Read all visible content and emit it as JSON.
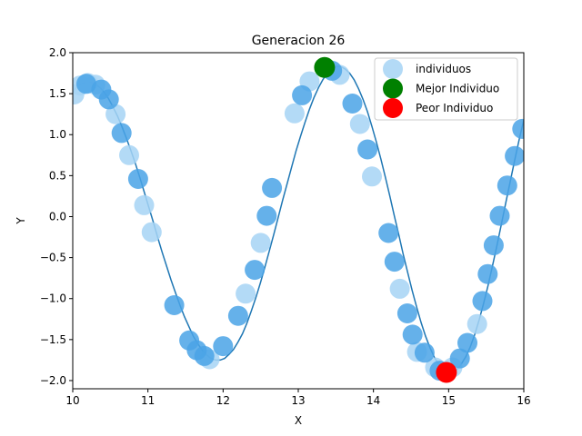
{
  "chart_data": {
    "type": "scatter",
    "title": "Generacion 26",
    "xlabel": "X",
    "ylabel": "Y",
    "xlim": [
      10,
      16
    ],
    "ylim": [
      -2.1,
      2.0
    ],
    "xticks": [
      "10",
      "11",
      "12",
      "13",
      "14",
      "15",
      "16"
    ],
    "yticks": [
      "2.0",
      "1.5",
      "1.0",
      "0.5",
      "0.0",
      "−0.5",
      "−1.0",
      "−1.5",
      "−2.0"
    ],
    "grid": false,
    "legend_position": "top-right",
    "curve": {
      "color": "#1f77b4",
      "x_start": 10,
      "x_end": 16,
      "y_values": [
        1.53,
        1.58,
        1.62,
        1.64,
        1.64,
        1.62,
        1.58,
        1.52,
        1.44,
        1.34,
        1.23,
        1.1,
        0.96,
        0.81,
        0.65,
        0.48,
        0.3,
        0.12,
        -0.06,
        -0.25,
        -0.43,
        -0.6,
        -0.77,
        -0.93,
        -1.08,
        -1.22,
        -1.34,
        -1.46,
        -1.55,
        -1.63,
        -1.69,
        -1.73,
        -1.75,
        -1.75,
        -1.73,
        -1.68,
        -1.62,
        -1.53,
        -1.43,
        -1.3,
        -1.15,
        -0.99,
        -0.81,
        -0.62,
        -0.42,
        -0.22,
        -0.01,
        0.2,
        0.4,
        0.6,
        0.8,
        0.98,
        1.15,
        1.31,
        1.45,
        1.57,
        1.67,
        1.75,
        1.8,
        1.83,
        1.83,
        1.8,
        1.75,
        1.67,
        1.56,
        1.43,
        1.28,
        1.1,
        0.91,
        0.7,
        0.48,
        0.25,
        0.01,
        -0.22,
        -0.46,
        -0.68,
        -0.9,
        -1.1,
        -1.29,
        -1.46,
        -1.6,
        -1.72,
        -1.81,
        -1.87,
        -1.9,
        -1.9,
        -1.87,
        -1.8,
        -1.71,
        -1.59,
        -1.44,
        -1.26,
        -1.06,
        -0.84,
        -0.6,
        -0.35,
        -0.09,
        0.18,
        0.44,
        0.7,
        0.95,
        1.18
      ]
    },
    "series": [
      {
        "name": "individuos",
        "color": "#a6d3f5",
        "points": [
          [
            10.02,
            1.49
          ],
          [
            10.1,
            1.6
          ],
          [
            10.2,
            1.63
          ],
          [
            10.3,
            1.61
          ],
          [
            10.57,
            1.25
          ],
          [
            10.75,
            0.75
          ],
          [
            10.95,
            0.14
          ],
          [
            11.05,
            -0.19
          ],
          [
            11.82,
            -1.74
          ],
          [
            12.3,
            -0.94
          ],
          [
            12.5,
            -0.32
          ],
          [
            12.95,
            1.26
          ],
          [
            13.15,
            1.65
          ],
          [
            13.55,
            1.73
          ],
          [
            13.82,
            1.13
          ],
          [
            13.98,
            0.49
          ],
          [
            14.35,
            -0.88
          ],
          [
            14.58,
            -1.65
          ],
          [
            14.82,
            -1.84
          ],
          [
            15.05,
            -1.84
          ],
          [
            15.38,
            -1.31
          ]
        ]
      },
      {
        "name": "individuos",
        "color": "#4aa3e6",
        "points": [
          [
            10.18,
            1.62
          ],
          [
            10.38,
            1.55
          ],
          [
            10.48,
            1.43
          ],
          [
            10.65,
            1.02
          ],
          [
            10.87,
            0.46
          ],
          [
            11.35,
            -1.08
          ],
          [
            11.55,
            -1.51
          ],
          [
            11.65,
            -1.63
          ],
          [
            11.75,
            -1.7
          ],
          [
            12.0,
            -1.58
          ],
          [
            12.2,
            -1.21
          ],
          [
            12.42,
            -0.65
          ],
          [
            12.58,
            0.01
          ],
          [
            12.65,
            0.35
          ],
          [
            13.05,
            1.48
          ],
          [
            13.45,
            1.78
          ],
          [
            13.72,
            1.38
          ],
          [
            13.92,
            0.82
          ],
          [
            14.2,
            -0.2
          ],
          [
            14.28,
            -0.55
          ],
          [
            14.45,
            -1.18
          ],
          [
            14.52,
            -1.44
          ],
          [
            14.68,
            -1.66
          ],
          [
            14.88,
            -1.88
          ],
          [
            15.15,
            -1.73
          ],
          [
            15.25,
            -1.54
          ],
          [
            15.45,
            -1.03
          ],
          [
            15.52,
            -0.7
          ],
          [
            15.6,
            -0.35
          ],
          [
            15.68,
            0.01
          ],
          [
            15.78,
            0.38
          ],
          [
            15.88,
            0.74
          ],
          [
            15.98,
            1.07
          ]
        ]
      },
      {
        "name": "Mejor Individuo",
        "color": "#008000",
        "points": [
          [
            13.35,
            1.82
          ]
        ]
      },
      {
        "name": "Peor Individuo",
        "color": "#ff0000",
        "points": [
          [
            14.97,
            -1.9
          ]
        ]
      }
    ],
    "legend": [
      {
        "label": "individuos",
        "color": "#a6d3f5"
      },
      {
        "label": "Mejor Individuo",
        "color": "#008000"
      },
      {
        "label": "Peor Individuo",
        "color": "#ff0000"
      }
    ]
  }
}
